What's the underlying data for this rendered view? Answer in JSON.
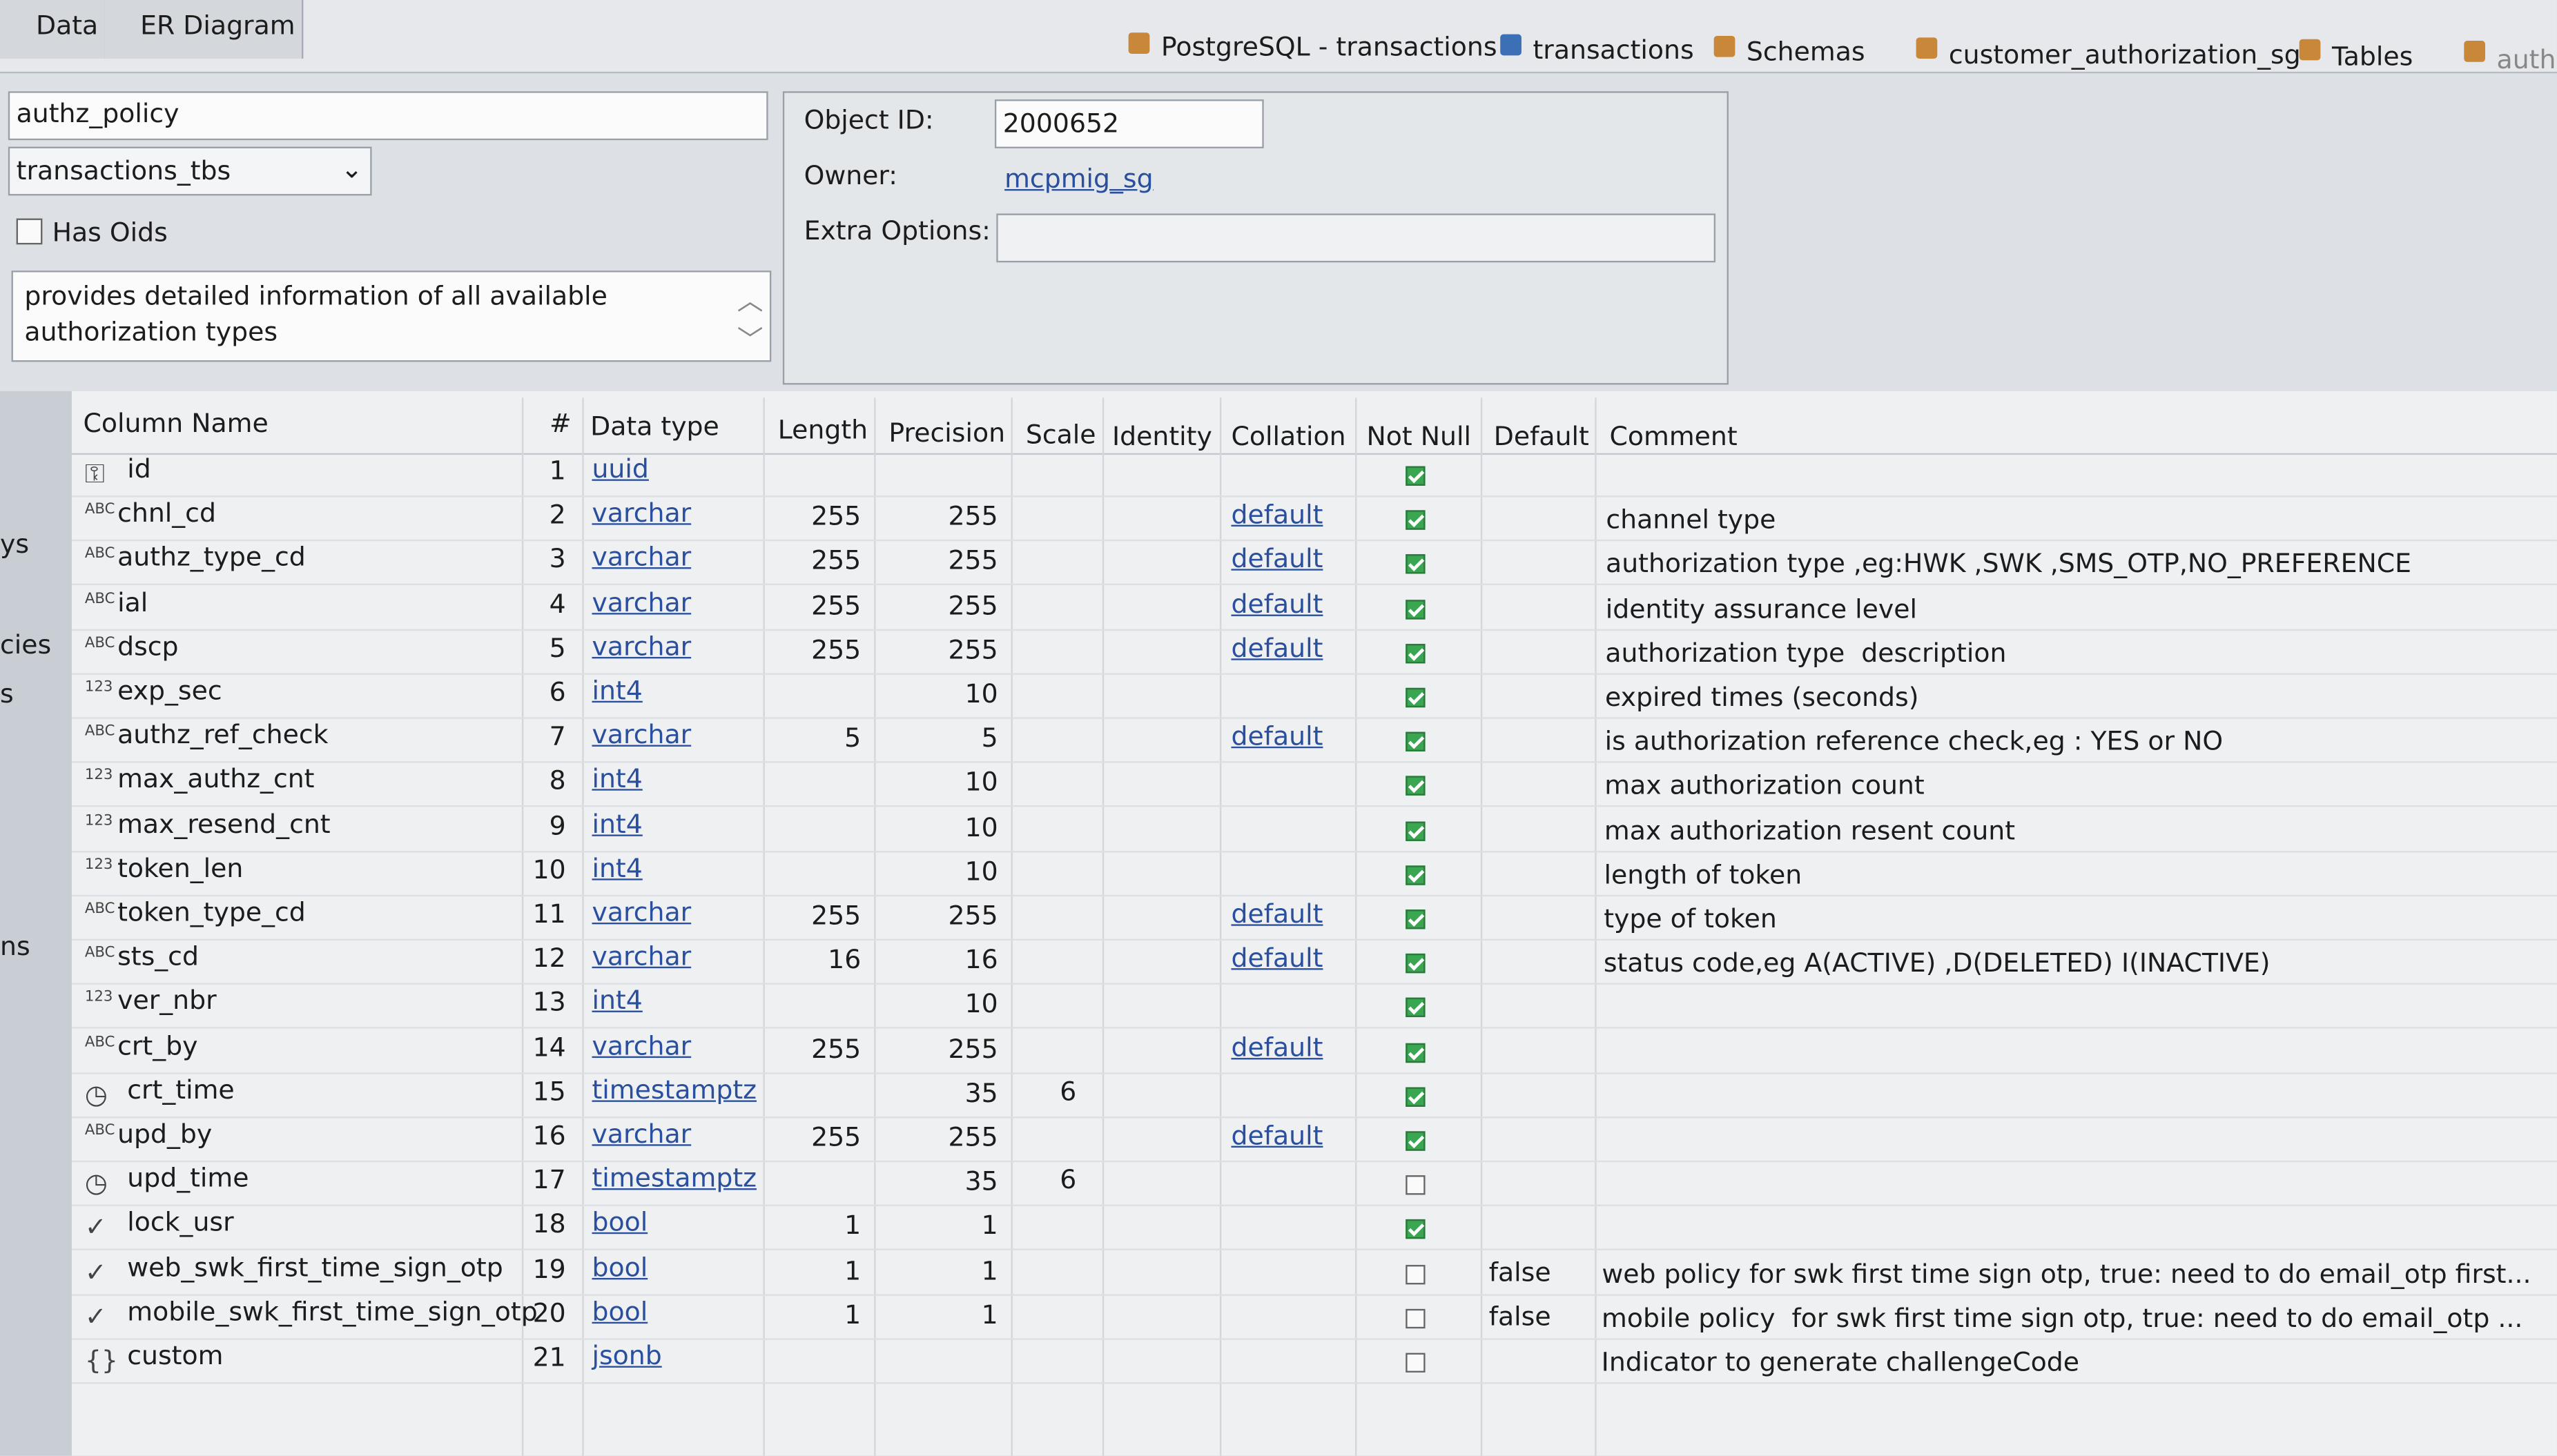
{
  "tabs": [
    "Data",
    "ER Diagram"
  ],
  "breadcrumb": [
    "PostgreSQL - transactions",
    "transactions",
    "Schemas",
    "customer_authorization_sg",
    "Tables",
    "authz"
  ],
  "sidebar": [
    "ys",
    "cies",
    "s",
    "ns"
  ],
  "form": {
    "name": "authz_policy",
    "tablespace": "transactions_tbs",
    "has_oids_label": "Has Oids",
    "has_oids": false,
    "description": "provides detailed information of all available authorization types",
    "object_id_label": "Object ID:",
    "object_id": "2000652",
    "owner_label": "Owner:",
    "owner": "mcpmig_sg",
    "extra_options_label": "Extra Options:"
  },
  "columns": {
    "headers": [
      "Column Name",
      "#",
      "Data type",
      "Length",
      "Precision",
      "Scale",
      "Identity",
      "Collation",
      "Not Null",
      "Default",
      "Comment"
    ],
    "rows": [
      {
        "name": "id",
        "num": 1,
        "type": "uuid",
        "not_null": true
      },
      {
        "name": "chnl_cd",
        "num": 2,
        "type": "varchar",
        "length": 255,
        "precision": 255,
        "collation": "default",
        "not_null": true,
        "comment": "channel type"
      },
      {
        "name": "authz_type_cd",
        "num": 3,
        "type": "varchar",
        "length": 255,
        "precision": 255,
        "collation": "default",
        "not_null": true,
        "comment": "authorization type ,eg:HWK ,SWK ,SMS_OTP,NO_PREFERENCE"
      },
      {
        "name": "ial",
        "num": 4,
        "type": "varchar",
        "length": 255,
        "precision": 255,
        "collation": "default",
        "not_null": true,
        "comment": "identity assurance level"
      },
      {
        "name": "dscp",
        "num": 5,
        "type": "varchar",
        "length": 255,
        "precision": 255,
        "collation": "default",
        "not_null": true,
        "comment": "authorization type  description"
      },
      {
        "name": "exp_sec",
        "num": 6,
        "type": "int4",
        "precision": 10,
        "not_null": true,
        "comment": "expired times (seconds)"
      },
      {
        "name": "authz_ref_check",
        "num": 7,
        "type": "varchar",
        "length": 5,
        "precision": 5,
        "collation": "default",
        "not_null": true,
        "comment": "is authorization reference check,eg : YES or NO"
      },
      {
        "name": "max_authz_cnt",
        "num": 8,
        "type": "int4",
        "precision": 10,
        "not_null": true,
        "comment": "max authorization count"
      },
      {
        "name": "max_resend_cnt",
        "num": 9,
        "type": "int4",
        "precision": 10,
        "not_null": true,
        "comment": "max authorization resent count"
      },
      {
        "name": "token_len",
        "num": 10,
        "type": "int4",
        "precision": 10,
        "not_null": true,
        "comment": "length of token"
      },
      {
        "name": "token_type_cd",
        "num": 11,
        "type": "varchar",
        "length": 255,
        "precision": 255,
        "collation": "default",
        "not_null": true,
        "comment": "type of token"
      },
      {
        "name": "sts_cd",
        "num": 12,
        "type": "varchar",
        "length": 16,
        "precision": 16,
        "collation": "default",
        "not_null": true,
        "comment": "status code,eg A(ACTIVE) ,D(DELETED) I(INACTIVE)"
      },
      {
        "name": "ver_nbr",
        "num": 13,
        "type": "int4",
        "precision": 10,
        "not_null": true
      },
      {
        "name": "crt_by",
        "num": 14,
        "type": "varchar",
        "length": 255,
        "precision": 255,
        "collation": "default",
        "not_null": true
      },
      {
        "name": "crt_time",
        "num": 15,
        "type": "timestamptz",
        "precision": 35,
        "scale": 6,
        "not_null": true
      },
      {
        "name": "upd_by",
        "num": 16,
        "type": "varchar",
        "length": 255,
        "precision": 255,
        "collation": "default",
        "not_null": true
      },
      {
        "name": "upd_time",
        "num": 17,
        "type": "timestamptz",
        "precision": 35,
        "scale": 6,
        "not_null": false
      },
      {
        "name": "lock_usr",
        "num": 18,
        "type": "bool",
        "length": 1,
        "precision": 1,
        "not_null": true
      },
      {
        "name": "web_swk_first_time_sign_otp",
        "num": 19,
        "type": "bool",
        "length": 1,
        "precision": 1,
        "not_null": false,
        "default": "false",
        "comment": "web policy for swk first time sign otp, true: need to do email_otp first..."
      },
      {
        "name": "mobile_swk_first_time_sign_otp",
        "num": 20,
        "type": "bool",
        "length": 1,
        "precision": 1,
        "not_null": false,
        "default": "false",
        "comment": "mobile policy  for swk first time sign otp, true: need to do email_otp ..."
      },
      {
        "name": "custom",
        "num": 21,
        "type": "jsonb",
        "not_null": false,
        "comment": "Indicator to generate challengeCode"
      }
    ]
  }
}
